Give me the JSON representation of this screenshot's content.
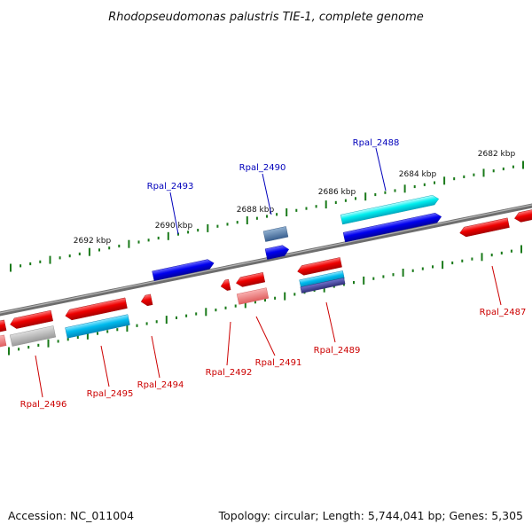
{
  "title": "Rhodopseudomonas palustris TIE-1, complete genome",
  "accession": "Accession: NC_011004",
  "summary": "Topology: circular; Length: 5,744,041 bp; Genes: 5,305",
  "colors": {
    "forward_label": "#0000bb",
    "reverse_label": "#cc0000",
    "backbone": "#808080",
    "ticks": "#1a7a1a"
  },
  "kbp_labels": [
    "2682 kbp",
    "2684 kbp",
    "2686 kbp",
    "2688 kbp",
    "2690 kbp",
    "2692 kbp"
  ],
  "gene_labels": [
    {
      "name": "Rpal_2488",
      "strand": "forward"
    },
    {
      "name": "Rpal_2490",
      "strand": "forward"
    },
    {
      "name": "Rpal_2493",
      "strand": "forward"
    },
    {
      "name": "Rpal_2487",
      "strand": "reverse"
    },
    {
      "name": "Rpal_2489",
      "strand": "reverse"
    },
    {
      "name": "Rpal_2491",
      "strand": "reverse"
    },
    {
      "name": "Rpal_2492",
      "strand": "reverse"
    },
    {
      "name": "Rpal_2494",
      "strand": "reverse"
    },
    {
      "name": "Rpal_2495",
      "strand": "reverse"
    },
    {
      "name": "Rpal_2496",
      "strand": "reverse"
    }
  ]
}
